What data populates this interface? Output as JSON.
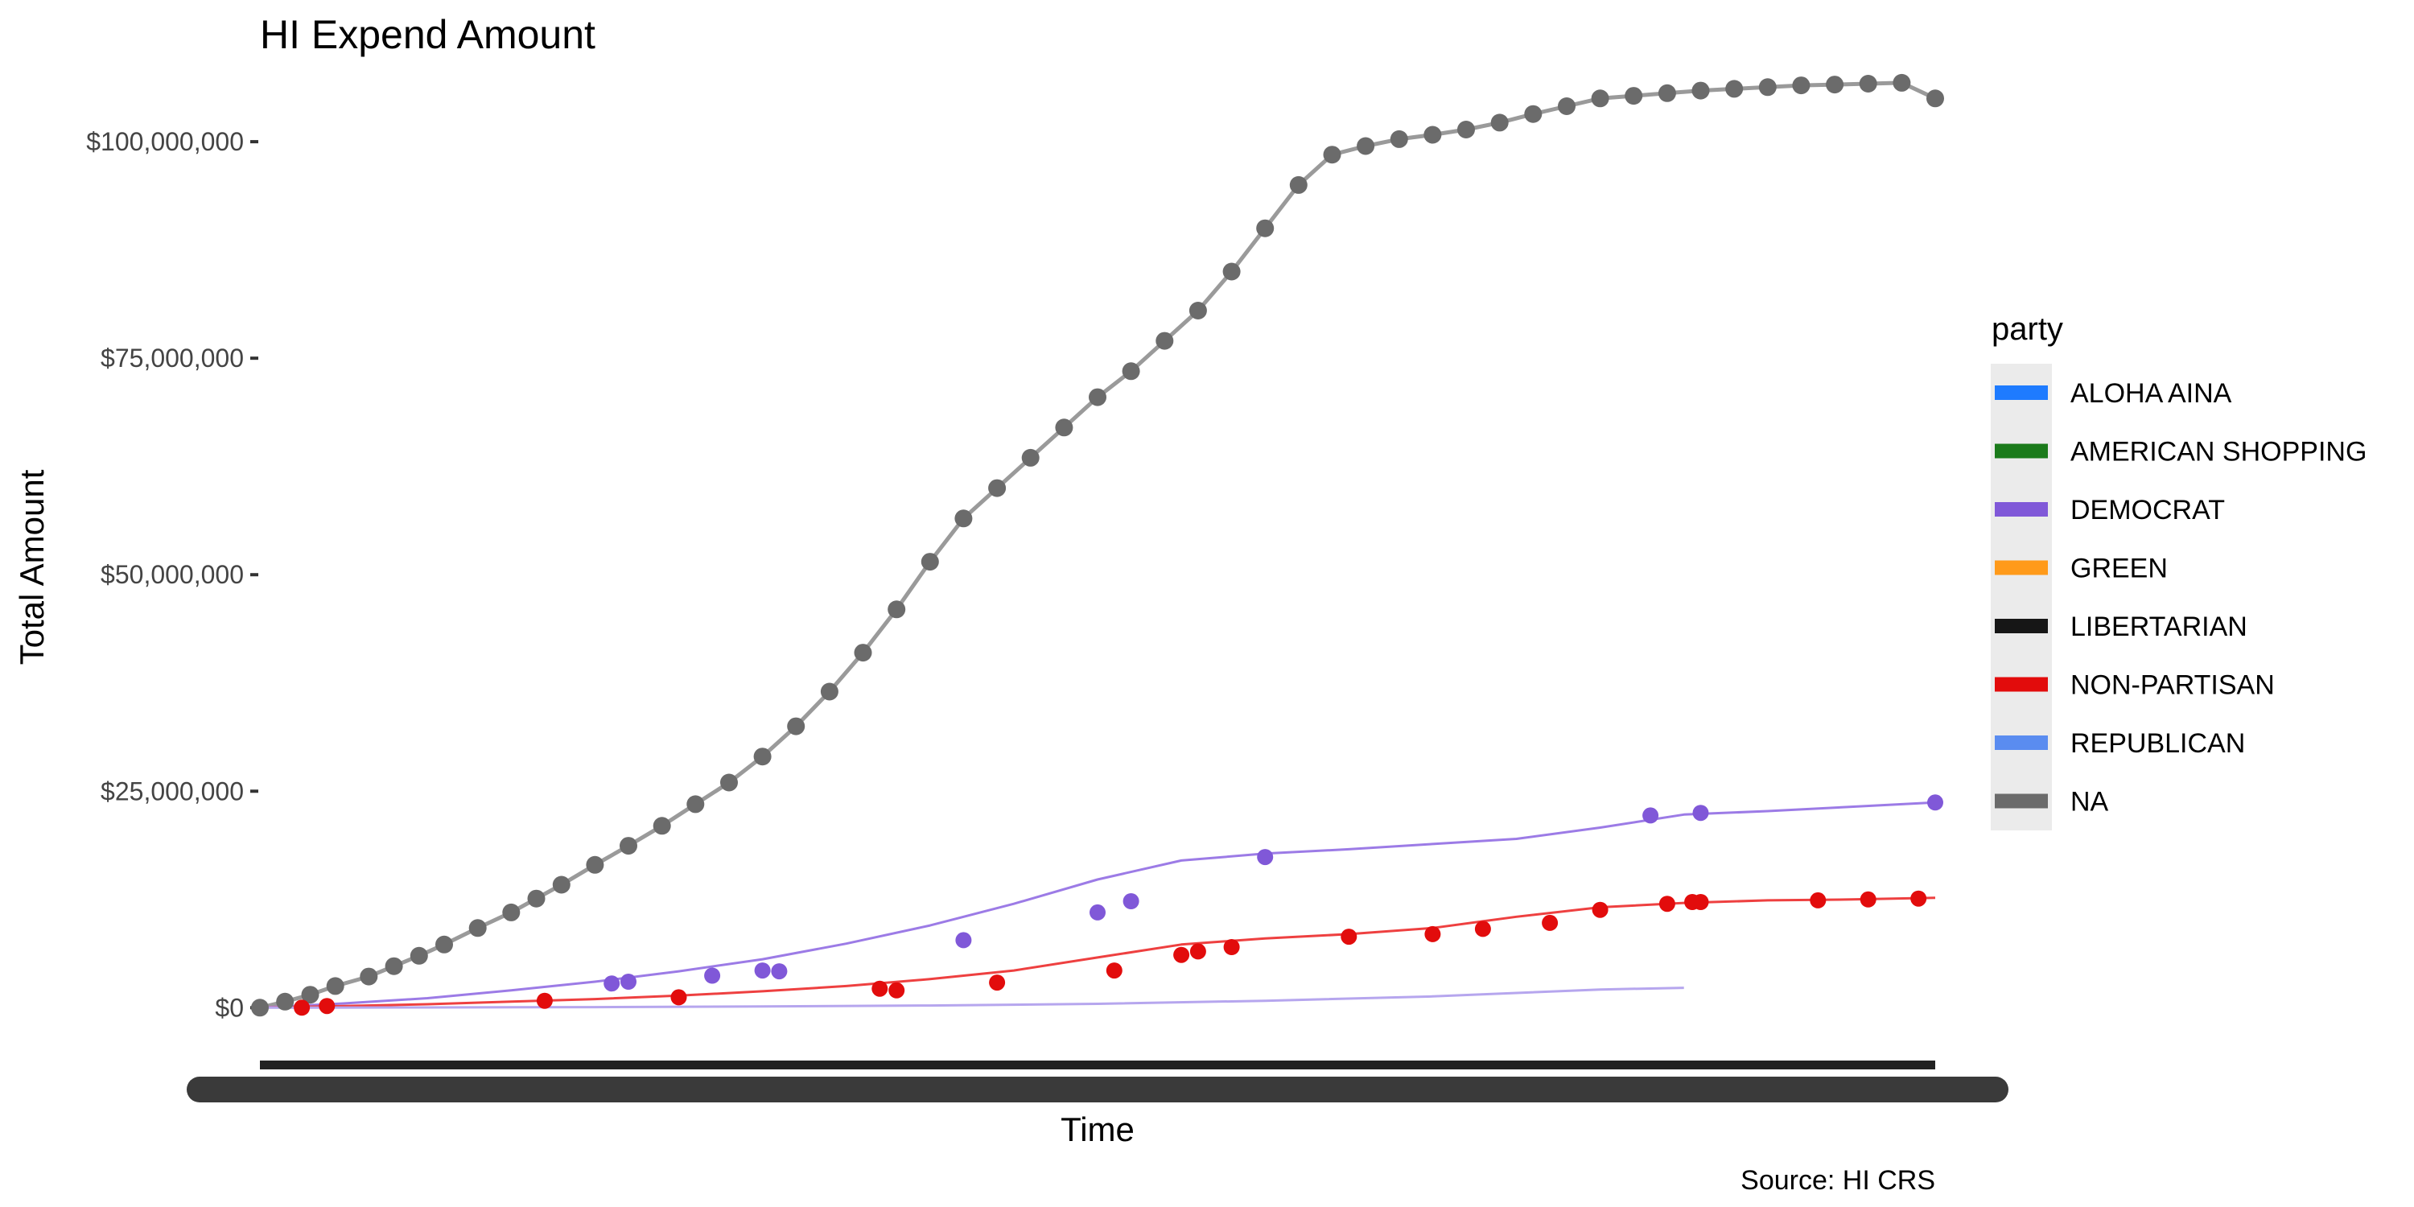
{
  "chart_data": {
    "type": "line",
    "title": "HI Expend Amount",
    "caption": "Source: HI CRS",
    "xlabel": "Time",
    "ylabel": "Total Amount",
    "x_range": [
      0,
      100
    ],
    "ylim": [
      -3500000,
      108000000
    ],
    "y_ticks": [
      {
        "value": 0,
        "label": "$0"
      },
      {
        "value": 25000000,
        "label": "$25,000,000"
      },
      {
        "value": 50000000,
        "label": "$50,000,000"
      },
      {
        "value": 75000000,
        "label": "$75,000,000"
      },
      {
        "value": 100000000,
        "label": "$100,000,000"
      }
    ],
    "grid": false,
    "legend": {
      "title": "party",
      "placement": "right",
      "entries": [
        {
          "label": "ALOHA AINA",
          "color": "#1E7BFF"
        },
        {
          "label": "AMERICAN SHOPPING",
          "color": "#1A7A1A"
        },
        {
          "label": "DEMOCRAT",
          "color": "#8058D8"
        },
        {
          "label": "GREEN",
          "color": "#FF9A1A"
        },
        {
          "label": "LIBERTARIAN",
          "color": "#161616"
        },
        {
          "label": "NON-PARTISAN",
          "color": "#E20C0C"
        },
        {
          "label": "REPUBLICAN",
          "color": "#5A8CF0"
        },
        {
          "label": "NA",
          "color": "#6B6B6B"
        }
      ]
    },
    "series": [
      {
        "name": "NA",
        "color": "#6B6B6B",
        "line_color": "#9A9A9A",
        "x": [
          0,
          1.5,
          3,
          4.5,
          6.5,
          8,
          9.5,
          11,
          13,
          15,
          16.5,
          18,
          20,
          22,
          24,
          26,
          28,
          30,
          32,
          34,
          36,
          38,
          40,
          42,
          44,
          46,
          48,
          50,
          52,
          54,
          56,
          58,
          60,
          62,
          64,
          66,
          68,
          70,
          72,
          74,
          76,
          78,
          80,
          82,
          84,
          86,
          88,
          90,
          92,
          94,
          96,
          98,
          100
        ],
        "y": [
          0,
          700000,
          1500000,
          2500000,
          3600000,
          4800000,
          6000000,
          7300000,
          9200000,
          11000000,
          12600000,
          14200000,
          16500000,
          18700000,
          21000000,
          23500000,
          26000000,
          29000000,
          32500000,
          36500000,
          41000000,
          46000000,
          51500000,
          56500000,
          60000000,
          63500000,
          67000000,
          70500000,
          73500000,
          77000000,
          80500000,
          85000000,
          90000000,
          95000000,
          98500000,
          99500000,
          100300000,
          100800000,
          101400000,
          102200000,
          103200000,
          104100000,
          105000000,
          105300000,
          105600000,
          105900000,
          106100000,
          106300000,
          106500000,
          106600000,
          106700000,
          106800000,
          105000000
        ]
      },
      {
        "name": "DEMOCRAT",
        "color": "#8058D8",
        "line_color": "#9C7BE6",
        "x": [
          0,
          5,
          10,
          15,
          20,
          25,
          30,
          35,
          40,
          45,
          50,
          55,
          60,
          65,
          70,
          75,
          80,
          85,
          90,
          95,
          100
        ],
        "y": [
          0,
          500000,
          1100000,
          2000000,
          3000000,
          4200000,
          5600000,
          7400000,
          9500000,
          12000000,
          14800000,
          17000000,
          17800000,
          18300000,
          18900000,
          19500000,
          20800000,
          22300000,
          22700000,
          23200000,
          23700000
        ]
      },
      {
        "name": "NON-PARTISAN",
        "color": "#E20C0C",
        "line_color": "#EE4040",
        "x": [
          0,
          5,
          10,
          15,
          20,
          25,
          30,
          35,
          40,
          45,
          50,
          55,
          60,
          65,
          70,
          75,
          80,
          85,
          90,
          95,
          100
        ],
        "y": [
          0,
          200000,
          400000,
          700000,
          1000000,
          1400000,
          1900000,
          2500000,
          3300000,
          4300000,
          5800000,
          7300000,
          8000000,
          8500000,
          9200000,
          10500000,
          11600000,
          12100000,
          12400000,
          12500000,
          12700000
        ]
      },
      {
        "name": "REPUBLICAN",
        "color": "#5A8CF0",
        "line_color": "#B6A6EE",
        "x": [
          0,
          10,
          20,
          30,
          40,
          50,
          60,
          70,
          80,
          85
        ],
        "y": [
          0,
          30000,
          70000,
          140000,
          250000,
          450000,
          800000,
          1300000,
          2100000,
          2300000
        ]
      }
    ],
    "markers": [
      {
        "series": "NA",
        "color": "#6B6B6B",
        "x": [
          0,
          1.5,
          3,
          4.5,
          6.5,
          8,
          9.5,
          11,
          13,
          15,
          16.5,
          18,
          20,
          22,
          24,
          26,
          28,
          30,
          32,
          34,
          36,
          38,
          40,
          42,
          44,
          46,
          48,
          50,
          52,
          54,
          56,
          58,
          60,
          62,
          64,
          66,
          68,
          70,
          72,
          74,
          76,
          78,
          80,
          82,
          84,
          86,
          88,
          90,
          92,
          94,
          96,
          98,
          100
        ],
        "y": [
          0,
          700000,
          1500000,
          2500000,
          3600000,
          4800000,
          6000000,
          7300000,
          9200000,
          11000000,
          12600000,
          14200000,
          16500000,
          18700000,
          21000000,
          23500000,
          26000000,
          29000000,
          32500000,
          36500000,
          41000000,
          46000000,
          51500000,
          56500000,
          60000000,
          63500000,
          67000000,
          70500000,
          73500000,
          77000000,
          80500000,
          85000000,
          90000000,
          95000000,
          98500000,
          99500000,
          100300000,
          100800000,
          101400000,
          102200000,
          103200000,
          104100000,
          105000000,
          105300000,
          105600000,
          105900000,
          106100000,
          106300000,
          106500000,
          106600000,
          106700000,
          106800000,
          105000000
        ]
      },
      {
        "series": "DEMOCRAT",
        "color": "#8058D8",
        "x": [
          21,
          22,
          27,
          30,
          31,
          42,
          50,
          52,
          60,
          83,
          86,
          100
        ],
        "y": [
          2800000,
          3000000,
          3700000,
          4300000,
          4200000,
          7800000,
          11000000,
          12300000,
          17400000,
          22200000,
          22500000,
          23700000
        ]
      },
      {
        "series": "NON-PARTISAN",
        "color": "#E20C0C",
        "x": [
          2.5,
          4,
          17,
          25,
          37,
          38,
          44,
          51,
          55,
          56,
          58,
          65,
          70,
          73,
          77,
          80,
          84,
          85.5,
          86,
          93,
          96,
          99
        ],
        "y": [
          0,
          200000,
          800000,
          1200000,
          2200000,
          2000000,
          2900000,
          4300000,
          6100000,
          6500000,
          7000000,
          8200000,
          8500000,
          9100000,
          9800000,
          11300000,
          12000000,
          12200000,
          12200000,
          12400000,
          12500000,
          12600000
        ]
      }
    ],
    "x_axis_decorations": {
      "tick_bar_color": "#222222",
      "tick_label_bar_color": "#3A3A3A"
    }
  }
}
